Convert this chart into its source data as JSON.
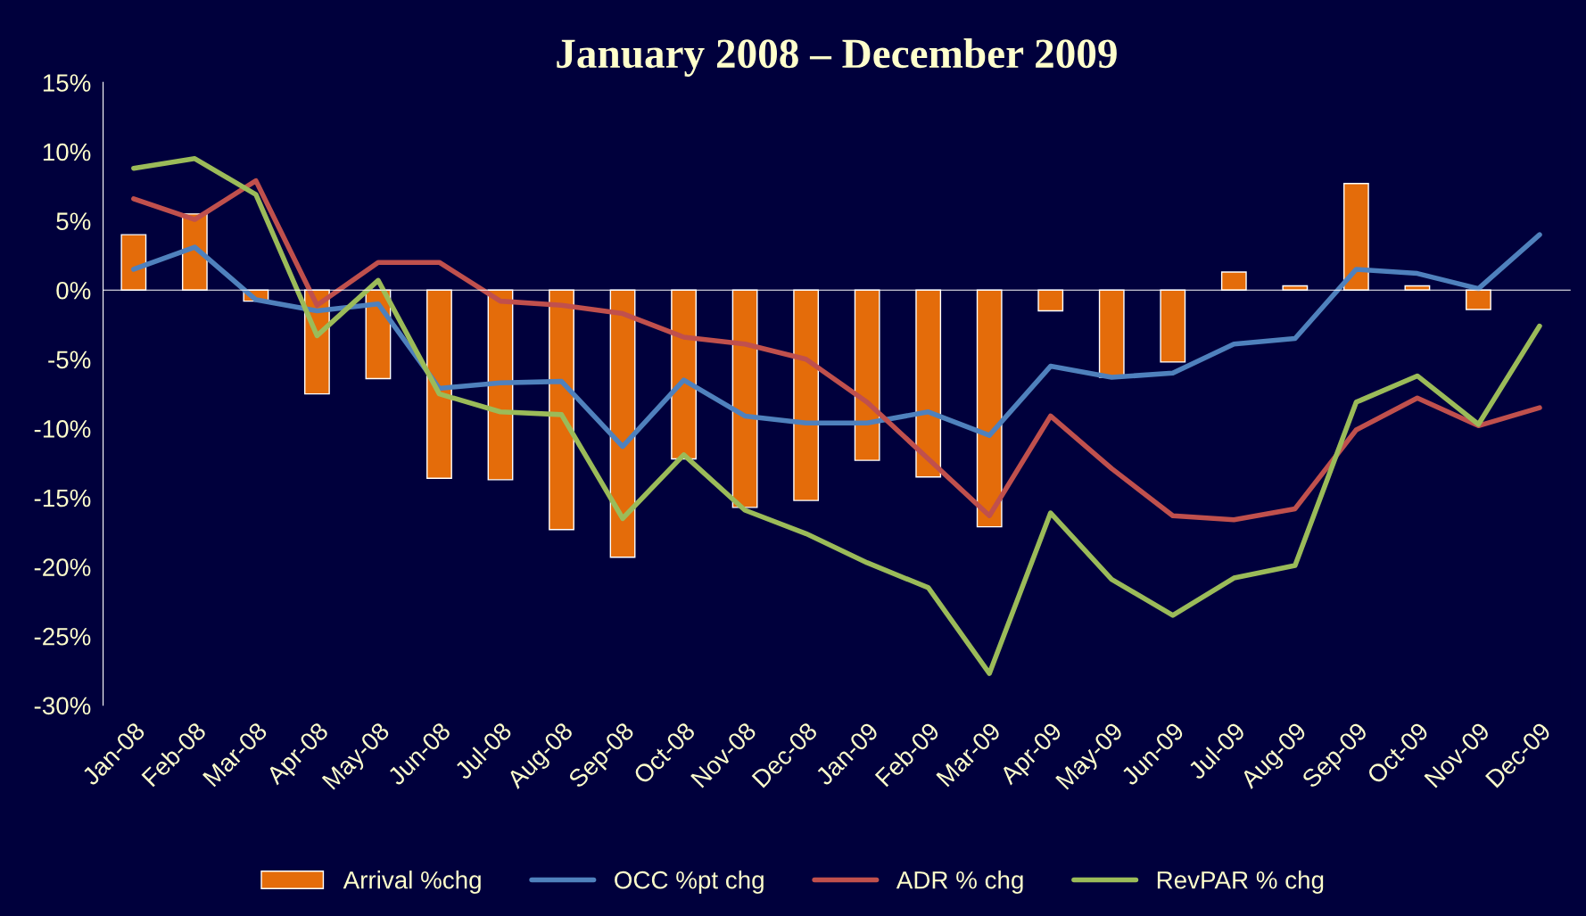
{
  "chart_data": {
    "type": "bar",
    "title": "January 2008 – December 2009",
    "categories": [
      "Jan-08",
      "Feb-08",
      "Mar-08",
      "Apr-08",
      "May-08",
      "Jun-08",
      "Jul-08",
      "Aug-08",
      "Sep-08",
      "Oct-08",
      "Nov-08",
      "Dec-08",
      "Jan-09",
      "Feb-09",
      "Mar-09",
      "Apr-09",
      "May-09",
      "Jun-09",
      "Jul-09",
      "Aug-09",
      "Sep-09",
      "Oct-09",
      "Nov-09",
      "Dec-09"
    ],
    "series": [
      {
        "name": "Arrival %chg",
        "color": "#e46c0a",
        "values": [
          4.0,
          5.5,
          -0.8,
          -7.5,
          -6.4,
          -13.6,
          -13.7,
          -17.3,
          -19.3,
          -12.2,
          -15.7,
          -15.2,
          -12.3,
          -13.5,
          -17.1,
          -1.5,
          -6.3,
          -5.2,
          1.3,
          0.3,
          7.7,
          0.3,
          -1.4,
          null
        ]
      },
      {
        "name": "OCC %pt chg",
        "type": "line",
        "color": "#4f81bd",
        "values": [
          1.5,
          3.1,
          -0.7,
          -1.5,
          -1.0,
          -7.1,
          -6.7,
          -6.6,
          -11.3,
          -6.5,
          -9.1,
          -9.6,
          -9.6,
          -8.8,
          -10.5,
          -5.5,
          -6.3,
          -6.0,
          -3.9,
          -3.5,
          1.5,
          1.2,
          0.1,
          4.0
        ]
      },
      {
        "name": "ADR % chg",
        "type": "line",
        "color": "#c0504d",
        "values": [
          6.6,
          5.1,
          7.9,
          -1.1,
          2.0,
          2.0,
          -0.8,
          -1.1,
          -1.7,
          -3.4,
          -3.9,
          -5.0,
          -8.1,
          -12.2,
          -16.3,
          -9.1,
          -12.9,
          -16.3,
          -16.6,
          -15.8,
          -10.1,
          -7.8,
          -9.8,
          -8.5
        ]
      },
      {
        "name": "RevPAR % chg",
        "type": "line",
        "color": "#9bbb59",
        "values": [
          8.8,
          9.5,
          6.9,
          -3.3,
          0.7,
          -7.5,
          -8.8,
          -9.0,
          -16.5,
          -11.9,
          -15.9,
          -17.6,
          -19.7,
          -21.5,
          -27.7,
          -16.1,
          -20.9,
          -23.5,
          -20.8,
          -19.9,
          -8.1,
          -6.2,
          -9.7,
          -2.6
        ]
      }
    ],
    "ylim": [
      -30,
      15
    ],
    "yticks": [
      {
        "value": -30,
        "label": "-30%"
      },
      {
        "value": -25,
        "label": "-25%"
      },
      {
        "value": -20,
        "label": "-20%"
      },
      {
        "value": -15,
        "label": "-15%"
      },
      {
        "value": -10,
        "label": "-10%"
      },
      {
        "value": -5,
        "label": "-5%"
      },
      {
        "value": 0,
        "label": "0%"
      },
      {
        "value": 5,
        "label": "5%"
      },
      {
        "value": 10,
        "label": "10%"
      },
      {
        "value": 15,
        "label": "15%"
      }
    ],
    "legend": "bottom",
    "marker": "none",
    "line_style": "solid"
  }
}
